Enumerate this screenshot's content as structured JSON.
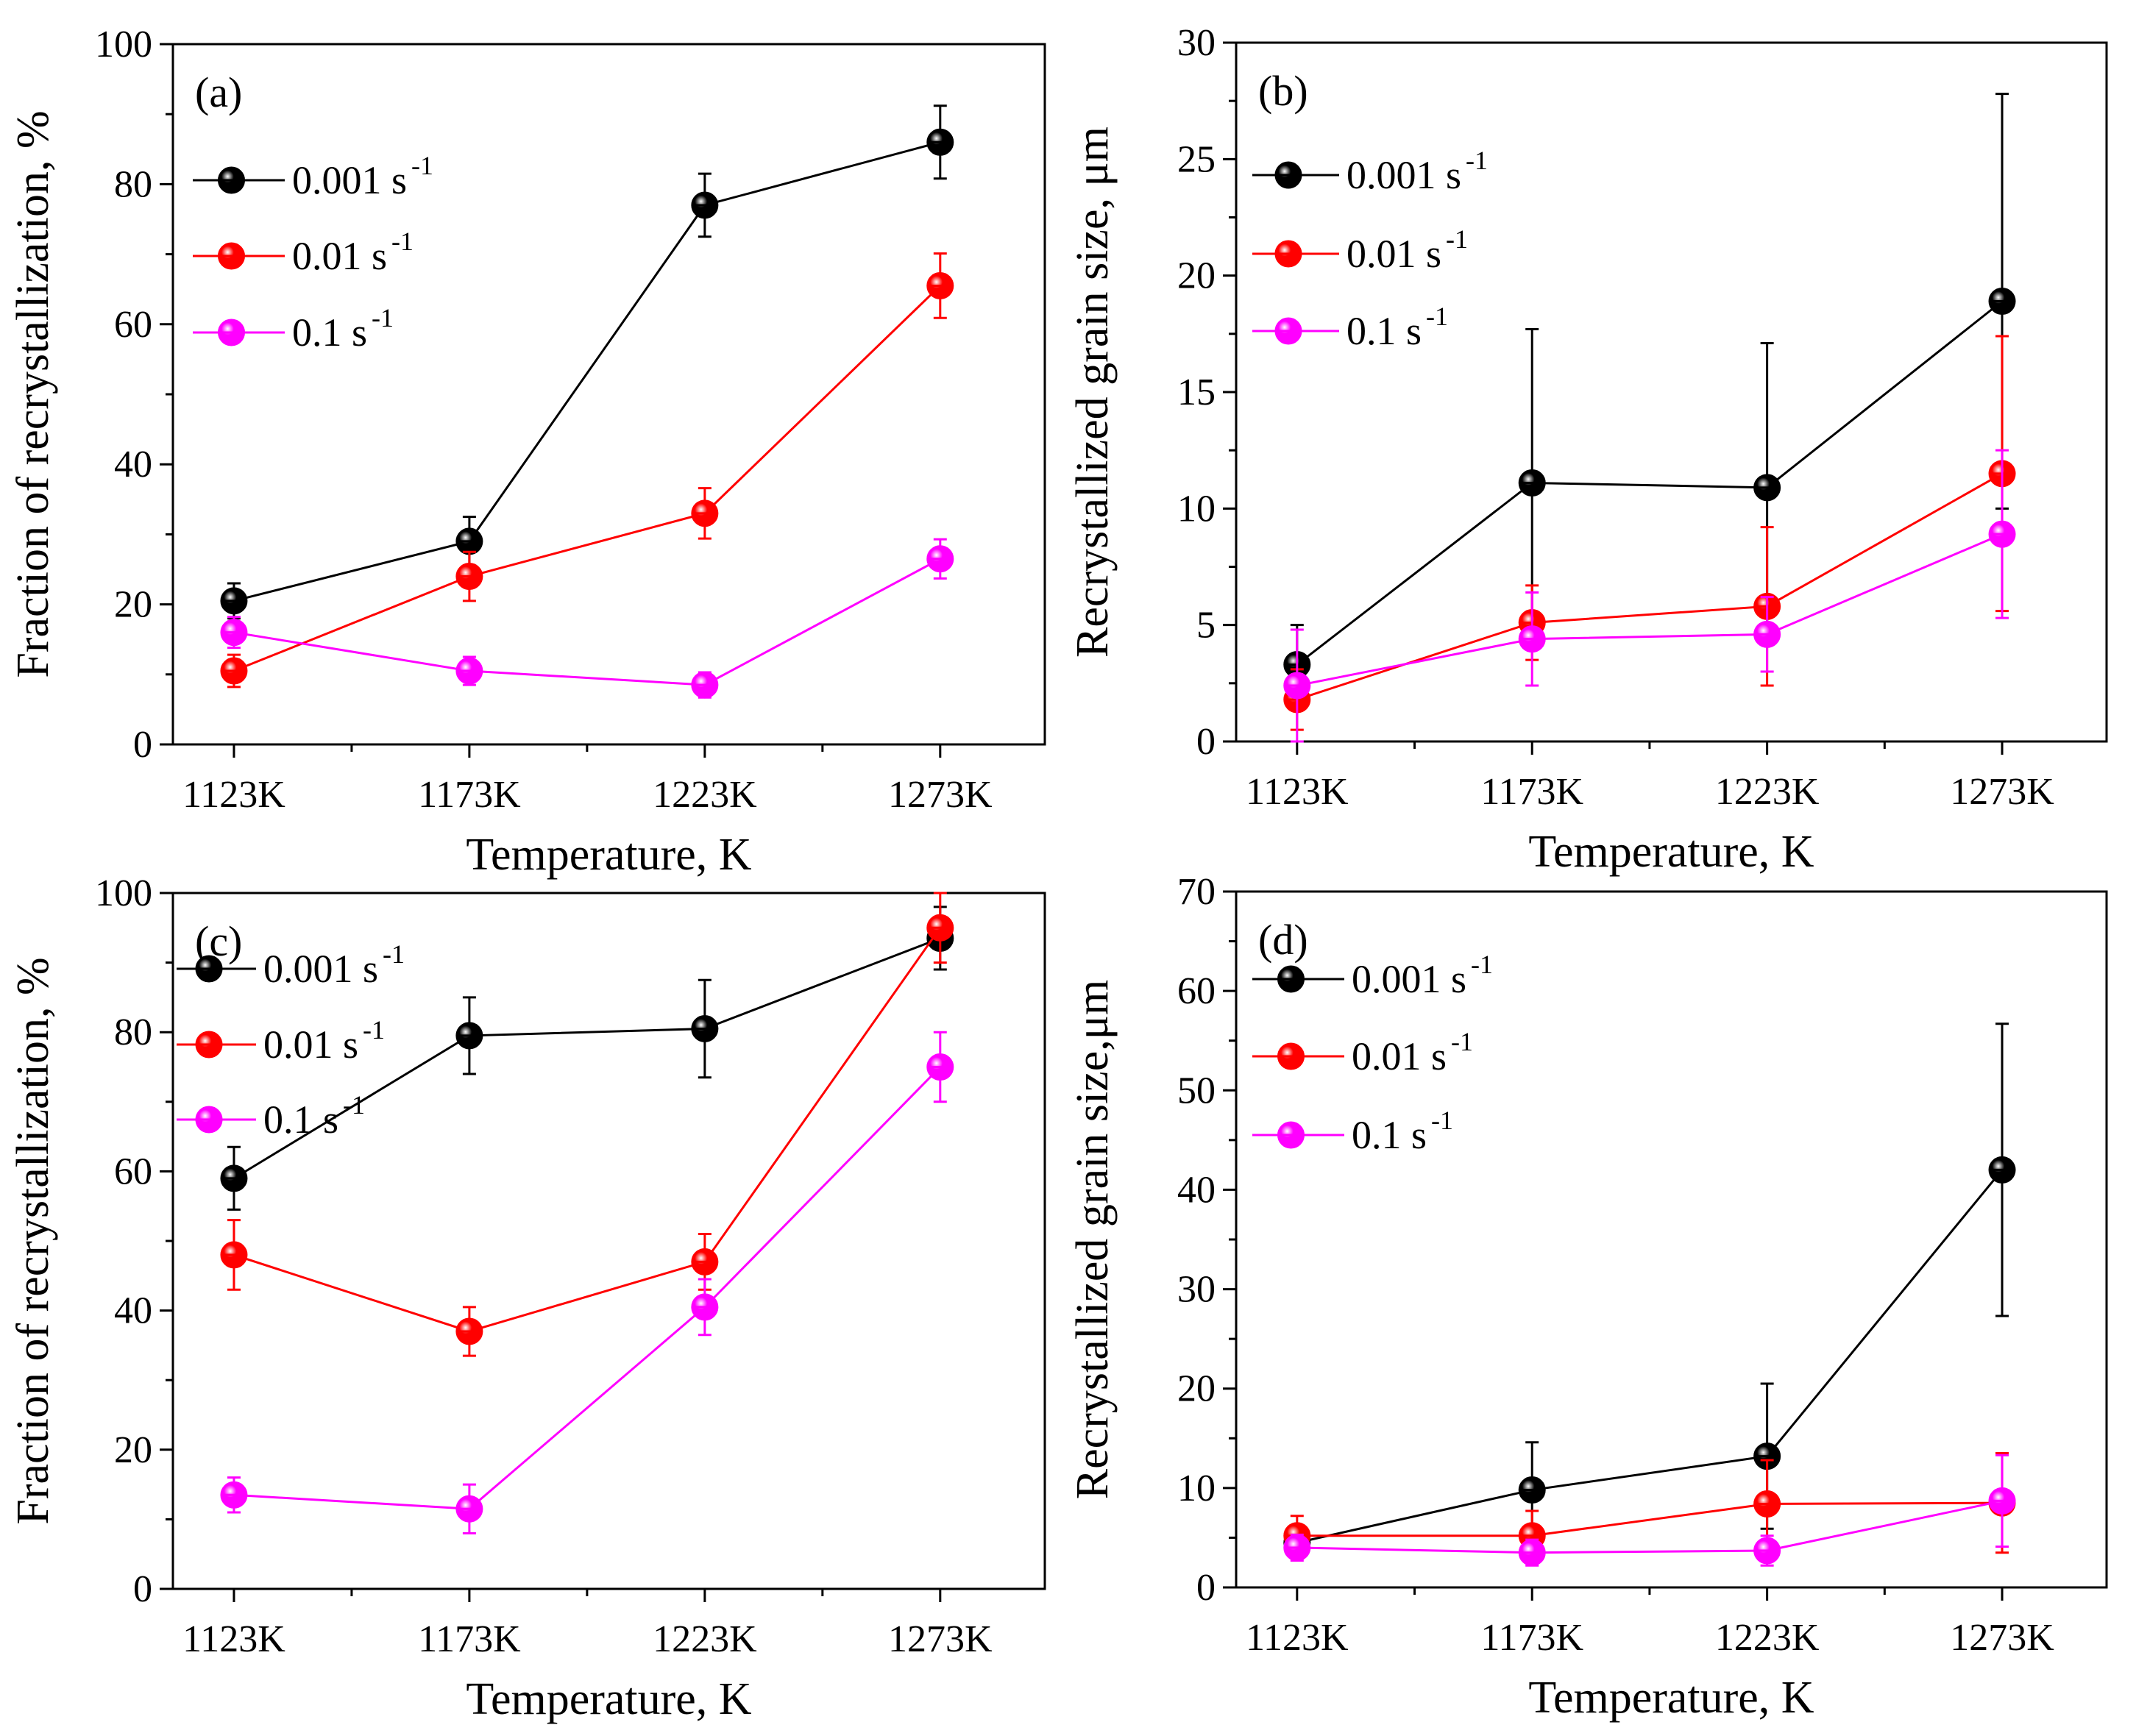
{
  "chart_data": [
    {
      "type": "line",
      "panel_label": "(a)",
      "categories": [
        "1123K",
        "1173K",
        "1223K",
        "1273K"
      ],
      "xlabel": "Temperature, K",
      "ylabel": "Fraction of recrystallization, %",
      "ylim": [
        0,
        100
      ],
      "yticks": [
        0,
        20,
        40,
        60,
        80,
        100
      ],
      "legend_position": "top-left",
      "series": [
        {
          "name": "0.001 s",
          "exponent": "-1",
          "color": "#000000",
          "values": [
            20.5,
            29,
            77,
            86
          ],
          "errors": [
            2.5,
            3.5,
            4.5,
            5.2
          ]
        },
        {
          "name": "0.01 s",
          "exponent": "-1",
          "color": "#ff0000",
          "values": [
            10.5,
            24,
            33,
            65.5
          ],
          "errors": [
            2.3,
            3.5,
            3.6,
            4.6
          ]
        },
        {
          "name": "0.1 s",
          "exponent": "-1",
          "color": "#ff00ff",
          "values": [
            16,
            10.5,
            8.5,
            26.5
          ],
          "errors": [
            2.2,
            2.0,
            1.8,
            2.8
          ]
        }
      ]
    },
    {
      "type": "line",
      "panel_label": "(b)",
      "categories": [
        "1123K",
        "1173K",
        "1223K",
        "1273K"
      ],
      "xlabel": "Temperature, K",
      "ylabel": "Recrystallized grain size, μm",
      "ylim": [
        0,
        30
      ],
      "yticks": [
        0,
        5,
        10,
        15,
        20,
        25,
        30
      ],
      "legend_position": "top-left",
      "series": [
        {
          "name": "0.001 s",
          "exponent": "-1",
          "color": "#000000",
          "values": [
            3.3,
            11.1,
            10.9,
            18.9
          ],
          "errors": [
            1.7,
            6.6,
            6.2,
            8.9
          ]
        },
        {
          "name": "0.01 s",
          "exponent": "-1",
          "color": "#ff0000",
          "values": [
            1.8,
            5.1,
            5.8,
            11.5
          ],
          "errors": [
            1.3,
            1.6,
            3.4,
            5.9
          ]
        },
        {
          "name": "0.1 s",
          "exponent": "-1",
          "color": "#ff00ff",
          "values": [
            2.4,
            4.4,
            4.6,
            8.9
          ],
          "errors": [
            2.4,
            2.0,
            1.6,
            3.6
          ]
        }
      ]
    },
    {
      "type": "line",
      "panel_label": "(c)",
      "categories": [
        "1123K",
        "1173K",
        "1223K",
        "1273K"
      ],
      "xlabel": "Temperature, K",
      "ylabel": "Fraction of recrystallization, %",
      "ylim": [
        0,
        100
      ],
      "yticks": [
        0,
        20,
        40,
        60,
        80,
        100
      ],
      "legend_position": "top-left",
      "series": [
        {
          "name": "0.001 s",
          "exponent": "-1",
          "color": "#000000",
          "values": [
            59,
            79.5,
            80.5,
            93.5
          ],
          "errors": [
            4.5,
            5.5,
            7.0,
            4.5
          ]
        },
        {
          "name": "0.01 s",
          "exponent": "-1",
          "color": "#ff0000",
          "values": [
            48,
            37,
            47,
            95
          ],
          "errors": [
            5.0,
            3.5,
            4.0,
            5.0
          ]
        },
        {
          "name": "0.1 s",
          "exponent": "-1",
          "color": "#ff00ff",
          "values": [
            13.5,
            11.5,
            40.5,
            75
          ],
          "errors": [
            2.5,
            3.5,
            4.0,
            5.0
          ]
        }
      ]
    },
    {
      "type": "line",
      "panel_label": "(d)",
      "categories": [
        "1123K",
        "1173K",
        "1223K",
        "1273K"
      ],
      "xlabel": "Temperature, K",
      "ylabel": "Recrystallized grain size,μm",
      "ylim": [
        0,
        70
      ],
      "yticks": [
        0,
        10,
        20,
        30,
        40,
        50,
        60,
        70
      ],
      "legend_position": "top-left",
      "series": [
        {
          "name": "0.001 s",
          "exponent": "-1",
          "color": "#000000",
          "values": [
            4.5,
            9.8,
            13.2,
            42
          ],
          "errors": [
            1.5,
            4.8,
            7.3,
            14.7
          ]
        },
        {
          "name": "0.01 s",
          "exponent": "-1",
          "color": "#ff0000",
          "values": [
            5.2,
            5.2,
            8.4,
            8.5
          ],
          "errors": [
            2.0,
            2.5,
            4.4,
            5.0
          ]
        },
        {
          "name": "0.1 s",
          "exponent": "-1",
          "color": "#ff00ff",
          "values": [
            4.0,
            3.5,
            3.7,
            8.7
          ],
          "errors": [
            1.3,
            1.3,
            1.5,
            4.6
          ]
        }
      ]
    }
  ]
}
